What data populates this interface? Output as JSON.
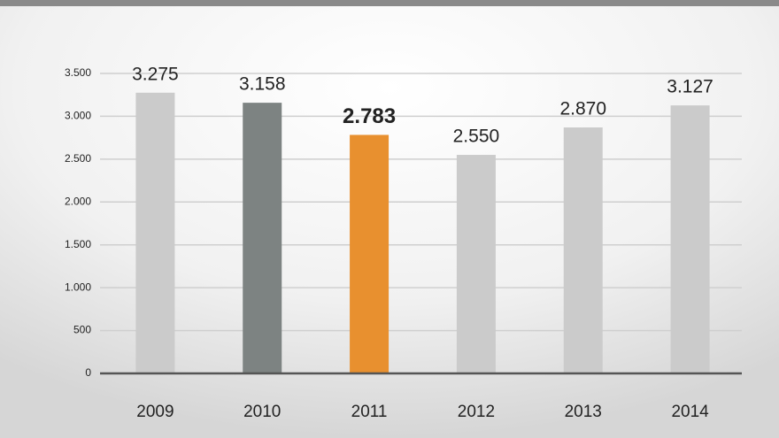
{
  "chart_data": {
    "type": "bar",
    "categories": [
      "2009",
      "2010",
      "2011",
      "2012",
      "2013",
      "2014"
    ],
    "values": [
      3275,
      3158,
      2783,
      2550,
      2870,
      3127
    ],
    "value_labels": [
      "3.275",
      "3.158",
      "2.783",
      "2.550",
      "2.870",
      "3.127"
    ],
    "colors": [
      "#cbcbcb",
      "#7d8382",
      "#e8902f",
      "#cbcbcb",
      "#cbcbcb",
      "#cbcbcb"
    ],
    "bold_labels": [
      false,
      false,
      true,
      false,
      false,
      false
    ],
    "ylim": [
      0,
      3500
    ],
    "yticks": [
      0,
      500,
      {
        "value": 1000,
        "label": "1.000"
      },
      {
        "value": 1500,
        "label": "1.500"
      },
      {
        "value": 2000,
        "label": "2.000"
      },
      {
        "value": 2500,
        "label": "2.500"
      },
      {
        "value": 3000,
        "label": "3.000"
      },
      {
        "value": 3500,
        "label": "3.500"
      }
    ],
    "grid": true
  }
}
